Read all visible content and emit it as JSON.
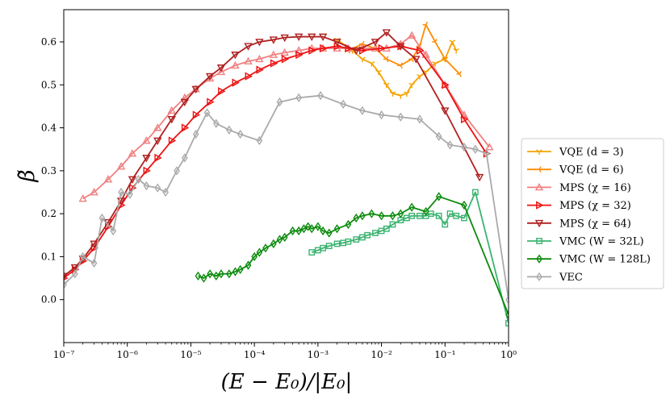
{
  "chart_data": {
    "type": "line",
    "title": "",
    "xlabel": "(E − E₀)/|E₀|",
    "ylabel": "β̃",
    "xscale": "log",
    "xlim": [
      1e-07,
      1
    ],
    "ylim": [
      -0.1,
      0.675
    ],
    "xtick_labels": [
      "10⁻⁷",
      "10⁻⁶",
      "10⁻⁵",
      "10⁻⁴",
      "10⁻³",
      "10⁻²",
      "10⁻¹",
      "10⁰"
    ],
    "ytick_labels": [
      "0.0",
      "0.1",
      "0.2",
      "0.3",
      "0.4",
      "0.5",
      "0.6"
    ],
    "legend_position": "right",
    "series": [
      {
        "name": "VQE (d = 3)",
        "color": "#f5a300",
        "marker": "tri_down",
        "points": [
          [
            0.002,
            0.605
          ],
          [
            0.0035,
            0.58
          ],
          [
            0.005,
            0.56
          ],
          [
            0.007,
            0.55
          ],
          [
            0.009,
            0.53
          ],
          [
            0.012,
            0.5
          ],
          [
            0.015,
            0.48
          ],
          [
            0.02,
            0.475
          ],
          [
            0.025,
            0.48
          ],
          [
            0.03,
            0.5
          ],
          [
            0.04,
            0.52
          ],
          [
            0.05,
            0.53
          ],
          [
            0.07,
            0.55
          ],
          [
            0.1,
            0.56
          ],
          [
            0.13,
            0.6
          ],
          [
            0.15,
            0.58
          ]
        ]
      },
      {
        "name": "VQE (d = 6)",
        "color": "#ff8c00",
        "marker": "tri_left",
        "points": [
          [
            0.003,
            0.58
          ],
          [
            0.005,
            0.595
          ],
          [
            0.008,
            0.585
          ],
          [
            0.012,
            0.56
          ],
          [
            0.02,
            0.545
          ],
          [
            0.03,
            0.56
          ],
          [
            0.04,
            0.59
          ],
          [
            0.05,
            0.64
          ],
          [
            0.07,
            0.6
          ],
          [
            0.1,
            0.56
          ],
          [
            0.17,
            0.525
          ]
        ]
      },
      {
        "name": "MPS (χ = 16)",
        "color": "#f08080",
        "marker": "triangle_up",
        "points": [
          [
            2e-07,
            0.235
          ],
          [
            3e-07,
            0.25
          ],
          [
            5e-07,
            0.28
          ],
          [
            8e-07,
            0.31
          ],
          [
            1.2e-06,
            0.34
          ],
          [
            2e-06,
            0.37
          ],
          [
            3e-06,
            0.4
          ],
          [
            5e-06,
            0.44
          ],
          [
            8e-06,
            0.47
          ],
          [
            1.2e-05,
            0.49
          ],
          [
            2e-05,
            0.515
          ],
          [
            3e-05,
            0.53
          ],
          [
            5e-05,
            0.545
          ],
          [
            8e-05,
            0.555
          ],
          [
            0.00012,
            0.56
          ],
          [
            0.0002,
            0.57
          ],
          [
            0.0003,
            0.575
          ],
          [
            0.0005,
            0.58
          ],
          [
            0.0008,
            0.585
          ],
          [
            0.0012,
            0.585
          ],
          [
            0.002,
            0.585
          ],
          [
            0.003,
            0.585
          ],
          [
            0.005,
            0.585
          ],
          [
            0.008,
            0.585
          ],
          [
            0.012,
            0.585
          ],
          [
            0.02,
            0.595
          ],
          [
            0.03,
            0.615
          ],
          [
            0.05,
            0.57
          ],
          [
            0.1,
            0.5
          ],
          [
            0.2,
            0.43
          ],
          [
            0.5,
            0.355
          ]
        ]
      },
      {
        "name": "MPS (χ = 32)",
        "color": "#ee1111",
        "marker": "triangle_right",
        "points": [
          [
            1e-07,
            0.05
          ],
          [
            1.5e-07,
            0.07
          ],
          [
            2e-07,
            0.09
          ],
          [
            3e-07,
            0.12
          ],
          [
            5e-07,
            0.17
          ],
          [
            8e-07,
            0.22
          ],
          [
            1.2e-06,
            0.26
          ],
          [
            2e-06,
            0.3
          ],
          [
            3e-06,
            0.33
          ],
          [
            5e-06,
            0.37
          ],
          [
            8e-06,
            0.4
          ],
          [
            1.2e-05,
            0.43
          ],
          [
            2e-05,
            0.46
          ],
          [
            3e-05,
            0.485
          ],
          [
            5e-05,
            0.505
          ],
          [
            8e-05,
            0.52
          ],
          [
            0.00012,
            0.535
          ],
          [
            0.0002,
            0.55
          ],
          [
            0.0003,
            0.56
          ],
          [
            0.0005,
            0.57
          ],
          [
            0.0008,
            0.58
          ],
          [
            0.0012,
            0.585
          ],
          [
            0.002,
            0.59
          ],
          [
            0.003,
            0.585
          ],
          [
            0.005,
            0.58
          ],
          [
            0.01,
            0.585
          ],
          [
            0.02,
            0.59
          ],
          [
            0.04,
            0.58
          ],
          [
            0.1,
            0.5
          ],
          [
            0.2,
            0.42
          ],
          [
            0.45,
            0.34
          ]
        ]
      },
      {
        "name": "MPS (χ = 64)",
        "color": "#b02020",
        "marker": "triangle_down",
        "points": [
          [
            1e-07,
            0.055
          ],
          [
            1.5e-07,
            0.075
          ],
          [
            2e-07,
            0.095
          ],
          [
            3e-07,
            0.13
          ],
          [
            5e-07,
            0.18
          ],
          [
            8e-07,
            0.23
          ],
          [
            1.2e-06,
            0.28
          ],
          [
            2e-06,
            0.33
          ],
          [
            3e-06,
            0.37
          ],
          [
            5e-06,
            0.42
          ],
          [
            8e-06,
            0.46
          ],
          [
            1.2e-05,
            0.49
          ],
          [
            2e-05,
            0.52
          ],
          [
            3e-05,
            0.54
          ],
          [
            5e-05,
            0.57
          ],
          [
            8e-05,
            0.59
          ],
          [
            0.00012,
            0.6
          ],
          [
            0.0002,
            0.605
          ],
          [
            0.0003,
            0.61
          ],
          [
            0.0005,
            0.612
          ],
          [
            0.0008,
            0.612
          ],
          [
            0.0012,
            0.612
          ],
          [
            0.002,
            0.6
          ],
          [
            0.004,
            0.58
          ],
          [
            0.008,
            0.6
          ],
          [
            0.012,
            0.622
          ],
          [
            0.02,
            0.59
          ],
          [
            0.035,
            0.56
          ],
          [
            0.1,
            0.44
          ],
          [
            0.35,
            0.285
          ]
        ]
      },
      {
        "name": "VMC (W = 32L)",
        "color": "#3cb371",
        "marker": "square",
        "points": [
          [
            0.0008,
            0.11
          ],
          [
            0.001,
            0.115
          ],
          [
            0.0012,
            0.12
          ],
          [
            0.0015,
            0.125
          ],
          [
            0.002,
            0.13
          ],
          [
            0.0025,
            0.132
          ],
          [
            0.003,
            0.135
          ],
          [
            0.004,
            0.14
          ],
          [
            0.005,
            0.145
          ],
          [
            0.006,
            0.15
          ],
          [
            0.008,
            0.155
          ],
          [
            0.01,
            0.16
          ],
          [
            0.012,
            0.165
          ],
          [
            0.015,
            0.175
          ],
          [
            0.02,
            0.185
          ],
          [
            0.025,
            0.19
          ],
          [
            0.03,
            0.195
          ],
          [
            0.04,
            0.195
          ],
          [
            0.05,
            0.195
          ],
          [
            0.06,
            0.2
          ],
          [
            0.08,
            0.195
          ],
          [
            0.1,
            0.175
          ],
          [
            0.12,
            0.2
          ],
          [
            0.15,
            0.195
          ],
          [
            0.2,
            0.19
          ],
          [
            0.3,
            0.25
          ],
          [
            1,
            -0.055
          ]
        ]
      },
      {
        "name": "VMC (W = 128L)",
        "color": "#0b8a0b",
        "marker": "diamond",
        "points": [
          [
            1.3e-05,
            0.055
          ],
          [
            1.6e-05,
            0.05
          ],
          [
            2e-05,
            0.06
          ],
          [
            2.5e-05,
            0.055
          ],
          [
            3e-05,
            0.06
          ],
          [
            4e-05,
            0.06
          ],
          [
            5e-05,
            0.065
          ],
          [
            6e-05,
            0.07
          ],
          [
            8e-05,
            0.08
          ],
          [
            0.0001,
            0.1
          ],
          [
            0.00012,
            0.11
          ],
          [
            0.00015,
            0.12
          ],
          [
            0.0002,
            0.13
          ],
          [
            0.00025,
            0.14
          ],
          [
            0.0003,
            0.145
          ],
          [
            0.0004,
            0.16
          ],
          [
            0.0005,
            0.16
          ],
          [
            0.0006,
            0.165
          ],
          [
            0.0007,
            0.17
          ],
          [
            0.0008,
            0.165
          ],
          [
            0.001,
            0.17
          ],
          [
            0.0012,
            0.16
          ],
          [
            0.0015,
            0.155
          ],
          [
            0.002,
            0.165
          ],
          [
            0.003,
            0.175
          ],
          [
            0.004,
            0.19
          ],
          [
            0.005,
            0.195
          ],
          [
            0.007,
            0.2
          ],
          [
            0.01,
            0.195
          ],
          [
            0.015,
            0.195
          ],
          [
            0.02,
            0.2
          ],
          [
            0.03,
            0.215
          ],
          [
            0.05,
            0.205
          ],
          [
            0.08,
            0.24
          ],
          [
            0.2,
            0.22
          ],
          [
            1,
            -0.035
          ]
        ]
      },
      {
        "name": "VEC",
        "color": "#aaaaaa",
        "marker": "diamond_open",
        "points": [
          [
            1e-07,
            0.035
          ],
          [
            1.5e-07,
            0.06
          ],
          [
            2e-07,
            0.1
          ],
          [
            3e-07,
            0.085
          ],
          [
            4e-07,
            0.19
          ],
          [
            6e-07,
            0.16
          ],
          [
            8e-07,
            0.25
          ],
          [
            1.1e-06,
            0.245
          ],
          [
            1.5e-06,
            0.28
          ],
          [
            2e-06,
            0.265
          ],
          [
            3e-06,
            0.26
          ],
          [
            4e-06,
            0.25
          ],
          [
            6e-06,
            0.3
          ],
          [
            8e-06,
            0.33
          ],
          [
            1.2e-05,
            0.385
          ],
          [
            1.8e-05,
            0.435
          ],
          [
            2.5e-05,
            0.41
          ],
          [
            4e-05,
            0.395
          ],
          [
            6e-05,
            0.385
          ],
          [
            0.00012,
            0.37
          ],
          [
            0.00025,
            0.46
          ],
          [
            0.0005,
            0.47
          ],
          [
            0.0011,
            0.475
          ],
          [
            0.0025,
            0.455
          ],
          [
            0.005,
            0.44
          ],
          [
            0.01,
            0.43
          ],
          [
            0.02,
            0.425
          ],
          [
            0.04,
            0.42
          ],
          [
            0.08,
            0.38
          ],
          [
            0.12,
            0.36
          ],
          [
            0.2,
            0.355
          ],
          [
            0.3,
            0.35
          ],
          [
            0.45,
            0.34
          ],
          [
            1,
            0.0
          ]
        ]
      }
    ]
  }
}
